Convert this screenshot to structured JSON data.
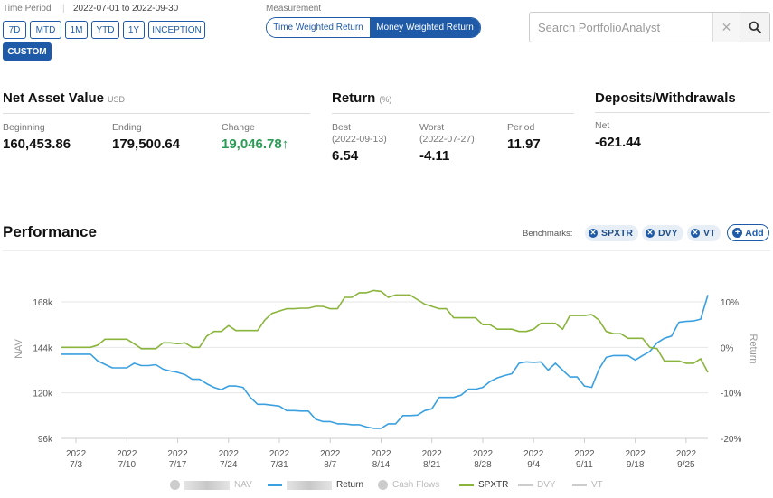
{
  "time_period": {
    "label": "Time Period",
    "range": "2022-07-01 to 2022-09-30",
    "buttons": [
      "7D",
      "MTD",
      "1M",
      "YTD",
      "1Y",
      "INCEPTION"
    ],
    "custom": "CUSTOM"
  },
  "measurement": {
    "label": "Measurement",
    "options": [
      "Time Weighted Return",
      "Money Weighted Return"
    ],
    "selected": "Money Weighted Return"
  },
  "search": {
    "placeholder": "Search PortfolioAnalyst",
    "value": ""
  },
  "nav_section": {
    "title": "Net Asset Value",
    "unit": "USD",
    "beginning_label": "Beginning",
    "beginning": "160,453.86",
    "ending_label": "Ending",
    "ending": "179,500.64",
    "change_label": "Change",
    "change": "19,046.78",
    "change_arrow": "↑"
  },
  "return_section": {
    "title": "Return",
    "unit": "(%)",
    "best_label": "Best",
    "best_date": "(2022-09-13)",
    "best": "6.54",
    "worst_label": "Worst",
    "worst_date": "(2022-07-27)",
    "worst": "-4.11",
    "period_label": "Period",
    "period": "11.97"
  },
  "deposits_section": {
    "title": "Deposits/Withdrawals",
    "net_label": "Net",
    "net": "-621.44"
  },
  "performance": {
    "title": "Performance",
    "benchmarks_label": "Benchmarks:",
    "benchmarks": [
      "SPXTR",
      "DVY",
      "VT"
    ],
    "add_label": "Add"
  },
  "legend": {
    "nav": "NAV",
    "return": "Return",
    "cash_flows": "Cash Flows",
    "spxtr": "SPXTR",
    "dvy": "DVY",
    "vt": "VT"
  },
  "colors": {
    "accent": "#1e5aa8",
    "return_line": "#3aa0e0",
    "spxtr_line": "#8ab43c",
    "positive": "#2a9d55"
  },
  "chart_data": {
    "type": "line",
    "xlabel": "",
    "y_left_label": "NAV",
    "y_right_label": "Return",
    "y_left_ticks": [
      "168k",
      "144k",
      "120k",
      "96k"
    ],
    "y_right_ticks": [
      "10%",
      "0%",
      "-10%",
      "-20%"
    ],
    "y_right_range": [
      -20,
      10
    ],
    "x_tick_year": "2022",
    "x_ticks": [
      "7/3",
      "7/10",
      "7/17",
      "7/24",
      "7/31",
      "8/7",
      "8/14",
      "8/21",
      "8/28",
      "9/4",
      "9/11",
      "9/18",
      "9/25"
    ],
    "x_ticks_day": [
      2,
      9,
      16,
      23,
      30,
      37,
      44,
      51,
      58,
      65,
      72,
      79,
      86
    ],
    "x_range_day": [
      0,
      89
    ],
    "series": [
      {
        "name": "Return",
        "color": "#3aa0e0",
        "points": [
          [
            0,
            -1.5
          ],
          [
            4,
            -1.5
          ],
          [
            5,
            -3
          ],
          [
            7,
            -4.5
          ],
          [
            9,
            -4.5
          ],
          [
            10,
            -3.5
          ],
          [
            11,
            -4
          ],
          [
            12,
            -4
          ],
          [
            13,
            -3.8
          ],
          [
            14,
            -4.8
          ],
          [
            15,
            -5.2
          ],
          [
            16,
            -5.5
          ],
          [
            17,
            -6
          ],
          [
            18,
            -7
          ],
          [
            19,
            -7
          ],
          [
            20,
            -8
          ],
          [
            21,
            -8.8
          ],
          [
            22,
            -9.3
          ],
          [
            23,
            -8.5
          ],
          [
            24,
            -8.5
          ],
          [
            25,
            -8.8
          ],
          [
            26,
            -11
          ],
          [
            27,
            -12.5
          ],
          [
            28,
            -12.5
          ],
          [
            29,
            -12.7
          ],
          [
            30,
            -12.9
          ],
          [
            31,
            -13.9
          ],
          [
            32,
            -13.9
          ],
          [
            33,
            -14
          ],
          [
            34,
            -14
          ],
          [
            35,
            -15.8
          ],
          [
            36,
            -16.3
          ],
          [
            37,
            -16.3
          ],
          [
            38,
            -16.8
          ],
          [
            39,
            -16.8
          ],
          [
            40,
            -17
          ],
          [
            41,
            -17
          ],
          [
            42,
            -17.5
          ],
          [
            43,
            -17.8
          ],
          [
            44,
            -17.8
          ],
          [
            45,
            -16.8
          ],
          [
            46,
            -16.8
          ],
          [
            47,
            -15
          ],
          [
            48,
            -15
          ],
          [
            49,
            -14.9
          ],
          [
            50,
            -13.9
          ],
          [
            51,
            -13.5
          ],
          [
            52,
            -11
          ],
          [
            53,
            -11
          ],
          [
            54,
            -11
          ],
          [
            55,
            -10.5
          ],
          [
            56,
            -9.2
          ],
          [
            57,
            -9.2
          ],
          [
            58,
            -8.8
          ],
          [
            59,
            -7.5
          ],
          [
            60,
            -6.7
          ],
          [
            61,
            -6.2
          ],
          [
            62,
            -5.8
          ],
          [
            63,
            -3.5
          ],
          [
            64,
            -3.2
          ],
          [
            65,
            -3.3
          ],
          [
            66,
            -3.2
          ],
          [
            67,
            -5
          ],
          [
            68,
            -3.5
          ],
          [
            69,
            -5
          ],
          [
            70,
            -6.5
          ],
          [
            71,
            -6.5
          ],
          [
            72,
            -8.5
          ],
          [
            73,
            -8.8
          ],
          [
            74,
            -4.8
          ],
          [
            75,
            -2.2
          ],
          [
            76,
            -1.8
          ],
          [
            77,
            -1.8
          ],
          [
            78,
            -1.8
          ],
          [
            79,
            -2.8
          ],
          [
            80,
            -1.8
          ],
          [
            81,
            -0.9
          ],
          [
            82,
            1
          ],
          [
            83,
            2
          ],
          [
            84,
            2.5
          ],
          [
            85,
            5.5
          ],
          [
            86,
            5.7
          ],
          [
            87,
            5.8
          ],
          [
            88,
            6.2
          ],
          [
            89,
            11.5
          ]
        ]
      },
      {
        "name": "SPXTR",
        "color": "#8ab43c",
        "points": [
          [
            0,
            0
          ],
          [
            4,
            0
          ],
          [
            5,
            0.5
          ],
          [
            6,
            1.8
          ],
          [
            9,
            1.8
          ],
          [
            10,
            0.8
          ],
          [
            11,
            -0.3
          ],
          [
            12,
            -0.3
          ],
          [
            13,
            -0.3
          ],
          [
            14,
            1
          ],
          [
            15,
            1
          ],
          [
            16,
            0.8
          ],
          [
            17,
            1
          ],
          [
            18,
            0
          ],
          [
            19,
            0
          ],
          [
            20,
            2.5
          ],
          [
            21,
            3.5
          ],
          [
            22,
            3.5
          ],
          [
            23,
            4.8
          ],
          [
            24,
            3.7
          ],
          [
            25,
            3.7
          ],
          [
            26,
            3.7
          ],
          [
            27,
            3.7
          ],
          [
            28,
            6
          ],
          [
            29,
            7.5
          ],
          [
            30,
            8
          ],
          [
            31,
            8.5
          ],
          [
            32,
            8.5
          ],
          [
            33,
            8.6
          ],
          [
            34,
            8.6
          ],
          [
            35,
            9
          ],
          [
            36,
            9
          ],
          [
            37,
            8.5
          ],
          [
            38,
            8.5
          ],
          [
            39,
            11
          ],
          [
            40,
            11
          ],
          [
            41,
            12
          ],
          [
            42,
            12
          ],
          [
            43,
            12.5
          ],
          [
            44,
            12.3
          ],
          [
            45,
            11
          ],
          [
            46,
            11.5
          ],
          [
            47,
            11.5
          ],
          [
            48,
            11.5
          ],
          [
            49,
            10.5
          ],
          [
            50,
            9.5
          ],
          [
            51,
            9
          ],
          [
            52,
            8.5
          ],
          [
            53,
            8.5
          ],
          [
            54,
            6.5
          ],
          [
            55,
            6.5
          ],
          [
            56,
            6.5
          ],
          [
            57,
            6.5
          ],
          [
            58,
            5
          ],
          [
            59,
            5
          ],
          [
            60,
            4
          ],
          [
            61,
            4
          ],
          [
            62,
            4
          ],
          [
            63,
            3.5
          ],
          [
            64,
            3.5
          ],
          [
            65,
            4
          ],
          [
            66,
            5.3
          ],
          [
            67,
            5.3
          ],
          [
            68,
            5.3
          ],
          [
            69,
            4
          ],
          [
            70,
            7
          ],
          [
            71,
            7
          ],
          [
            72,
            7
          ],
          [
            73,
            7.2
          ],
          [
            74,
            6
          ],
          [
            75,
            3.5
          ],
          [
            76,
            3
          ],
          [
            77,
            3
          ],
          [
            78,
            2
          ],
          [
            79,
            2
          ],
          [
            80,
            2
          ],
          [
            81,
            0
          ],
          [
            82,
            -0.3
          ],
          [
            83,
            -3
          ],
          [
            84,
            -3
          ],
          [
            85,
            -3
          ],
          [
            86,
            -3.5
          ],
          [
            87,
            -3.5
          ],
          [
            88,
            -2.5
          ],
          [
            89,
            -5.5
          ]
        ]
      }
    ]
  }
}
